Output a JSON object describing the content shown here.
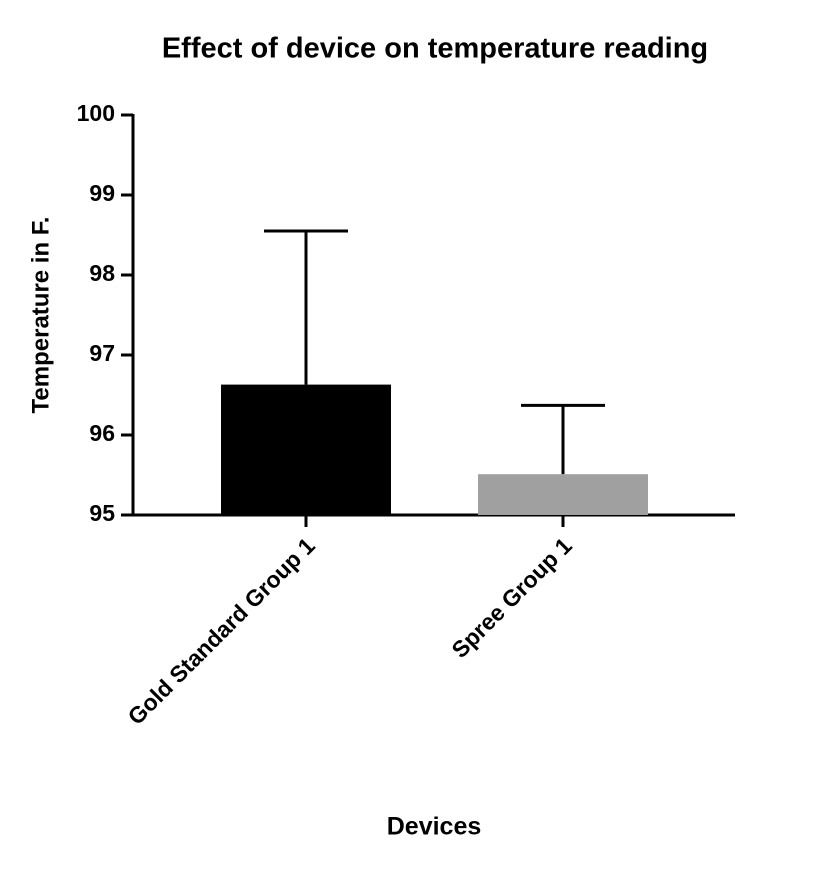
{
  "chart_data": {
    "type": "bar",
    "title": "Effect of device on temperature reading",
    "x_label": "Devices",
    "y_label": "Temperature in F.",
    "categories": [
      "Gold Standard Group 1",
      "Spree Group 1"
    ],
    "values": [
      96.63,
      95.51
    ],
    "errors": [
      1.92,
      0.86
    ],
    "colors": [
      "#000000",
      "#a0a0a0"
    ],
    "ylim": [
      95,
      100
    ],
    "yticks": [
      95,
      96,
      97,
      98,
      99,
      100
    ],
    "grid": false
  }
}
